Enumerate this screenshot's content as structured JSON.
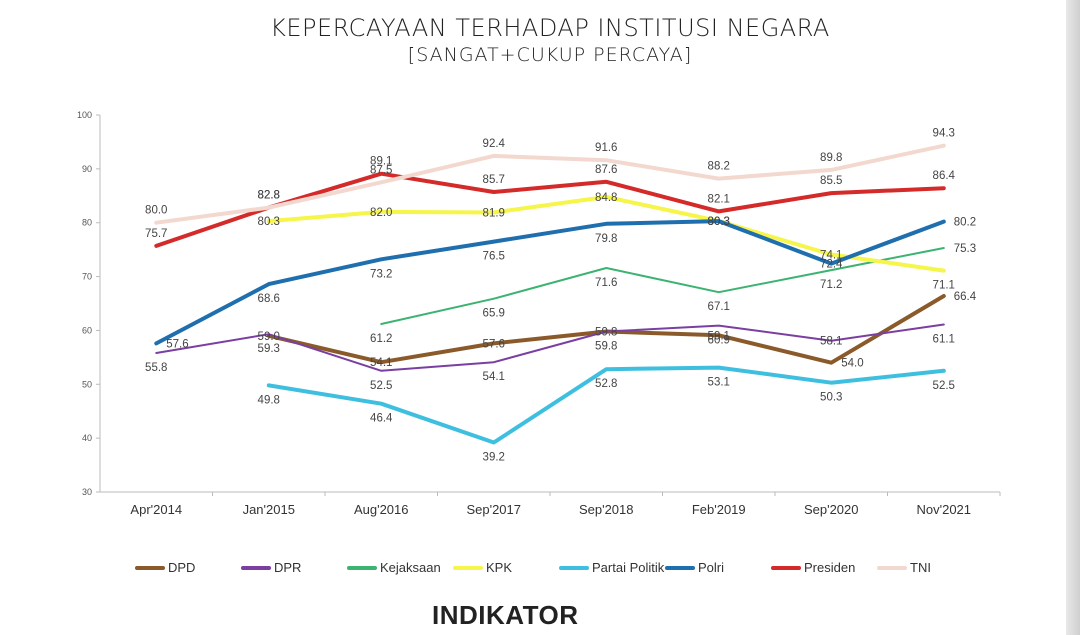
{
  "header": {
    "title": "KEPERCAYAAN TERHADAP INSTITUSI NEGARA",
    "subtitle": "[SANGAT+CUKUP PERCAYA]"
  },
  "logo_text": "INDIKATOR",
  "chart_data": {
    "type": "line",
    "title": "KEPERCAYAAN TERHADAP INSTITUSI NEGARA",
    "subtitle": "[SANGAT+CUKUP PERCAYA]",
    "xlabel": "",
    "ylabel": "",
    "ylim": [
      30,
      100
    ],
    "yticks": [
      30,
      40,
      50,
      60,
      70,
      80,
      90,
      100
    ],
    "grid": false,
    "legend_position": "bottom",
    "categories": [
      "Apr'2014",
      "Jan'2015",
      "Aug'2016",
      "Sep'2017",
      "Sep'2018",
      "Feb'2019",
      "Sep'2020",
      "Nov'2021"
    ],
    "series": [
      {
        "name": "DPD",
        "color": "#8b5a2b",
        "values": [
          null,
          59.0,
          54.1,
          57.6,
          59.8,
          59.1,
          54.0,
          66.4
        ]
      },
      {
        "name": "DPR",
        "color": "#7a3fa0",
        "values": [
          55.8,
          59.3,
          52.5,
          54.1,
          59.8,
          60.9,
          58.1,
          61.1
        ]
      },
      {
        "name": "Kejaksaan",
        "color": "#3cb371",
        "values": [
          null,
          null,
          61.2,
          65.9,
          71.6,
          67.1,
          71.2,
          75.3
        ]
      },
      {
        "name": "KPK",
        "color": "#f5f54a",
        "values": [
          null,
          80.3,
          82.0,
          81.9,
          84.8,
          80.3,
          74.1,
          71.1
        ]
      },
      {
        "name": "Partai Politik",
        "color": "#3fbfe0",
        "values": [
          null,
          49.8,
          46.4,
          39.2,
          52.8,
          53.1,
          50.3,
          52.5
        ]
      },
      {
        "name": "Polri",
        "color": "#1f6fae",
        "values": [
          57.6,
          68.6,
          73.2,
          76.5,
          79.8,
          80.3,
          72.4,
          80.2
        ]
      },
      {
        "name": "Presiden",
        "color": "#d42a2a",
        "values": [
          75.7,
          82.8,
          89.1,
          85.7,
          87.6,
          82.1,
          85.5,
          86.4
        ]
      },
      {
        "name": "TNI",
        "color": "#f3d8cf",
        "values": [
          80.0,
          82.8,
          87.5,
          92.4,
          91.6,
          88.2,
          89.8,
          94.3
        ]
      }
    ],
    "data_labels": [
      {
        "series": "TNI",
        "category": "Apr'2014",
        "text": "80.0",
        "pos": "above"
      },
      {
        "series": "TNI",
        "category": "Jan'2015",
        "text": "82.8",
        "pos": "above"
      },
      {
        "series": "TNI",
        "category": "Aug'2016",
        "text": "87.5",
        "pos": "above"
      },
      {
        "series": "TNI",
        "category": "Sep'2017",
        "text": "92.4",
        "pos": "above"
      },
      {
        "series": "TNI",
        "category": "Sep'2018",
        "text": "91.6",
        "pos": "above"
      },
      {
        "series": "TNI",
        "category": "Feb'2019",
        "text": "88.2",
        "pos": "above"
      },
      {
        "series": "TNI",
        "category": "Sep'2020",
        "text": "89.8",
        "pos": "above"
      },
      {
        "series": "TNI",
        "category": "Nov'2021",
        "text": "94.3",
        "pos": "above"
      },
      {
        "series": "Presiden",
        "category": "Apr'2014",
        "text": "75.7",
        "pos": "above"
      },
      {
        "series": "Presiden",
        "category": "Jan'2015",
        "text": "82.8",
        "pos": "above"
      },
      {
        "series": "Presiden",
        "category": "Aug'2016",
        "text": "89.1",
        "pos": "above"
      },
      {
        "series": "Presiden",
        "category": "Sep'2017",
        "text": "85.7",
        "pos": "above"
      },
      {
        "series": "Presiden",
        "category": "Sep'2018",
        "text": "87.6",
        "pos": "above"
      },
      {
        "series": "Presiden",
        "category": "Feb'2019",
        "text": "82.1",
        "pos": "above"
      },
      {
        "series": "Presiden",
        "category": "Sep'2020",
        "text": "85.5",
        "pos": "above"
      },
      {
        "series": "Presiden",
        "category": "Nov'2021",
        "text": "86.4",
        "pos": "above"
      },
      {
        "series": "KPK",
        "category": "Jan'2015",
        "text": "80.3",
        "pos": "center"
      },
      {
        "series": "KPK",
        "category": "Aug'2016",
        "text": "82.0",
        "pos": "center"
      },
      {
        "series": "KPK",
        "category": "Sep'2017",
        "text": "81.9",
        "pos": "center"
      },
      {
        "series": "KPK",
        "category": "Sep'2018",
        "text": "84.8",
        "pos": "center"
      },
      {
        "series": "KPK",
        "category": "Feb'2019",
        "text": "80.3",
        "pos": "center"
      },
      {
        "series": "KPK",
        "category": "Sep'2020",
        "text": "74.1",
        "pos": "center"
      },
      {
        "series": "KPK",
        "category": "Nov'2021",
        "text": "71.1",
        "pos": "below"
      },
      {
        "series": "Polri",
        "category": "Apr'2014",
        "text": "57.6",
        "pos": "right"
      },
      {
        "series": "Polri",
        "category": "Jan'2015",
        "text": "68.6",
        "pos": "below"
      },
      {
        "series": "Polri",
        "category": "Aug'2016",
        "text": "73.2",
        "pos": "below"
      },
      {
        "series": "Polri",
        "category": "Sep'2017",
        "text": "76.5",
        "pos": "below"
      },
      {
        "series": "Polri",
        "category": "Sep'2018",
        "text": "79.8",
        "pos": "below"
      },
      {
        "series": "Polri",
        "category": "Feb'2019",
        "text": "80.3",
        "pos": "center"
      },
      {
        "series": "Polri",
        "category": "Sep'2020",
        "text": "72.4",
        "pos": "center"
      },
      {
        "series": "Polri",
        "category": "Nov'2021",
        "text": "80.2",
        "pos": "right"
      },
      {
        "series": "Kejaksaan",
        "category": "Aug'2016",
        "text": "61.2",
        "pos": "below"
      },
      {
        "series": "Kejaksaan",
        "category": "Sep'2017",
        "text": "65.9",
        "pos": "below"
      },
      {
        "series": "Kejaksaan",
        "category": "Sep'2018",
        "text": "71.6",
        "pos": "below"
      },
      {
        "series": "Kejaksaan",
        "category": "Feb'2019",
        "text": "67.1",
        "pos": "below"
      },
      {
        "series": "Kejaksaan",
        "category": "Sep'2020",
        "text": "71.2",
        "pos": "below"
      },
      {
        "series": "Kejaksaan",
        "category": "Nov'2021",
        "text": "75.3",
        "pos": "right"
      },
      {
        "series": "DPD",
        "category": "Jan'2015",
        "text": "59.0",
        "pos": "center"
      },
      {
        "series": "DPD",
        "category": "Aug'2016",
        "text": "54.1",
        "pos": "center"
      },
      {
        "series": "DPD",
        "category": "Sep'2017",
        "text": "57.6",
        "pos": "center"
      },
      {
        "series": "DPD",
        "category": "Sep'2018",
        "text": "59.8",
        "pos": "center"
      },
      {
        "series": "DPD",
        "category": "Feb'2019",
        "text": "59.1",
        "pos": "center"
      },
      {
        "series": "DPD",
        "category": "Sep'2020",
        "text": "54.0",
        "pos": "right"
      },
      {
        "series": "DPD",
        "category": "Nov'2021",
        "text": "66.4",
        "pos": "right"
      },
      {
        "series": "DPR",
        "category": "Apr'2014",
        "text": "55.8",
        "pos": "below"
      },
      {
        "series": "DPR",
        "category": "Jan'2015",
        "text": "59.3",
        "pos": "below"
      },
      {
        "series": "DPR",
        "category": "Aug'2016",
        "text": "52.5",
        "pos": "below"
      },
      {
        "series": "DPR",
        "category": "Sep'2017",
        "text": "54.1",
        "pos": "below"
      },
      {
        "series": "DPR",
        "category": "Sep'2018",
        "text": "59.8",
        "pos": "below"
      },
      {
        "series": "DPR",
        "category": "Feb'2019",
        "text": "60.9",
        "pos": "below"
      },
      {
        "series": "DPR",
        "category": "Sep'2020",
        "text": "58.1",
        "pos": "center"
      },
      {
        "series": "DPR",
        "category": "Nov'2021",
        "text": "61.1",
        "pos": "below"
      },
      {
        "series": "Partai Politik",
        "category": "Jan'2015",
        "text": "49.8",
        "pos": "below"
      },
      {
        "series": "Partai Politik",
        "category": "Aug'2016",
        "text": "46.4",
        "pos": "below"
      },
      {
        "series": "Partai Politik",
        "category": "Sep'2017",
        "text": "39.2",
        "pos": "below"
      },
      {
        "series": "Partai Politik",
        "category": "Sep'2018",
        "text": "52.8",
        "pos": "below"
      },
      {
        "series": "Partai Politik",
        "category": "Feb'2019",
        "text": "53.1",
        "pos": "below"
      },
      {
        "series": "Partai Politik",
        "category": "Sep'2020",
        "text": "50.3",
        "pos": "below"
      },
      {
        "series": "Partai Politik",
        "category": "Nov'2021",
        "text": "52.5",
        "pos": "below"
      }
    ]
  }
}
